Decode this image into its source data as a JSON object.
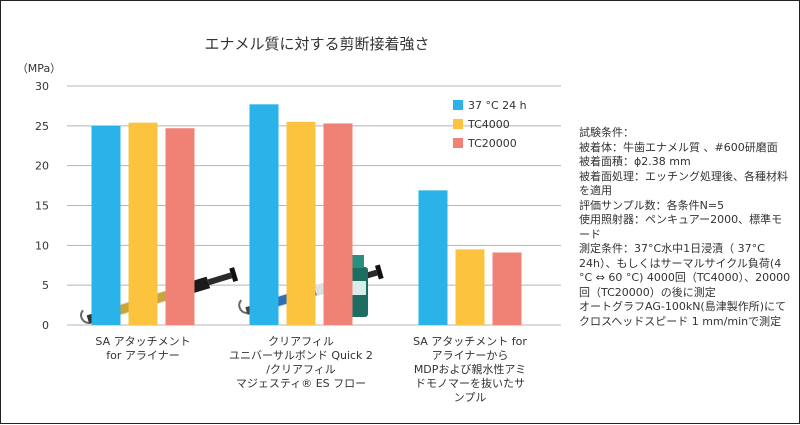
{
  "chart_data": {
    "type": "bar",
    "title": "エナメル質に対する剪断接着強さ",
    "ylabel": "（MPa）",
    "ylim": [
      0,
      30
    ],
    "yticks": [
      0,
      5,
      10,
      15,
      20,
      25,
      30
    ],
    "grid": true,
    "legend_position": "top-right",
    "categories": [
      [
        "SA アタッチメント",
        "for アライナー"
      ],
      [
        "クリアフィル",
        "ユニバーサルボンド Quick 2",
        "/クリアフィル",
        "マジェスティ® ES フロー"
      ],
      [
        "SA アタッチメント for",
        "アライナーから",
        "MDPおよび親水性アミ",
        "ドモノマーを抜いたサ",
        "ンプル"
      ]
    ],
    "series": [
      {
        "name": "37 °C 24 h",
        "color": "#2ab3e8",
        "values": [
          25.0,
          27.7,
          16.9
        ]
      },
      {
        "name": "TC4000",
        "color": "#fbc33e",
        "values": [
          25.4,
          25.5,
          9.5
        ]
      },
      {
        "name": "TC20000",
        "color": "#ef8275",
        "values": [
          24.7,
          25.3,
          9.1
        ]
      }
    ]
  },
  "conditions": {
    "lines": [
      "試験条件：",
      "被着体：牛歯エナメル質 、#600研磨面",
      "被着面積：ϕ2.38 mm",
      "被着面処理：エッチング処理後、各種材料を適用",
      "評価サンプル数：各条件N=5",
      "使用照射器：ペンキュアー2000、標準モード",
      "測定条件：37°C水中1日浸漬（ 37°C 24h）、もしくはサーマルサイクル負荷(4 °C ⇔ 60 °C) 4000回（TC4000）、20000回（TC20000）の後に測定",
      "オートグラフAG-100kN(島津製作所)にてクロスヘッドスピード 1 mm/minで測定"
    ]
  }
}
